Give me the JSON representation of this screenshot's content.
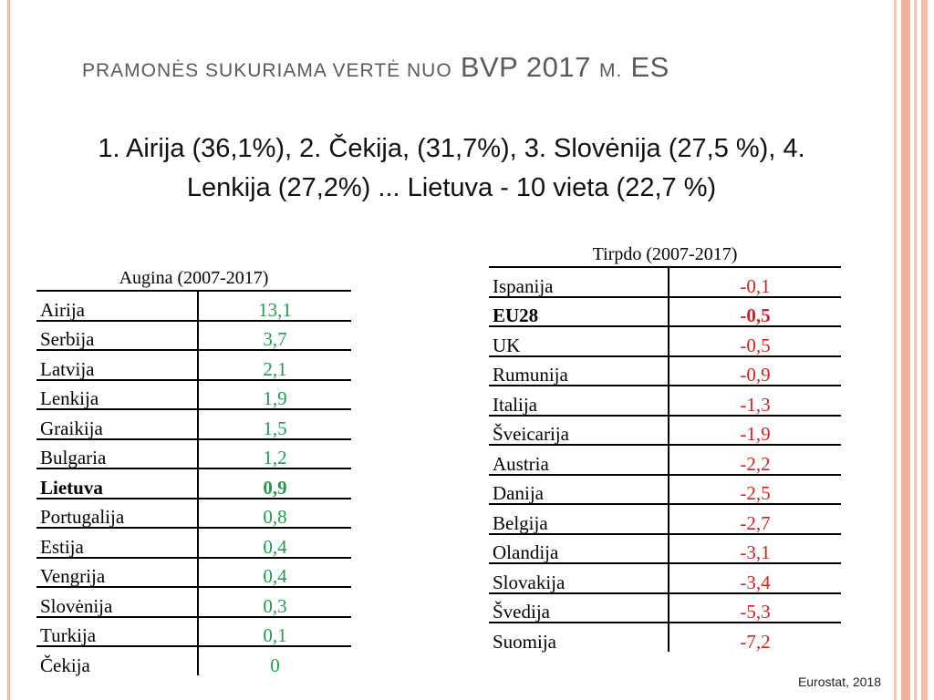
{
  "title": {
    "part1": "Pramonės sukuriama vertė nuo",
    "part2": "BVP 2017",
    "part3": "m.",
    "part4": "ES"
  },
  "subtitle": {
    "line1": "1. Airija (36,1%),  2. Čekija, (31,7%), 3. Slovėnija (27,5 %), 4.",
    "line2": "Lenkija (27,2%)  ... Lietuva - 10 vieta  (22,7 %)"
  },
  "grow_table": {
    "caption": "Augina (2007-2017)",
    "rows": [
      {
        "country": "Airija",
        "value": "13,1"
      },
      {
        "country": "Serbija",
        "value": "3,7"
      },
      {
        "country": "Latvija",
        "value": "2,1"
      },
      {
        "country": "Lenkija",
        "value": "1,9"
      },
      {
        "country": "Graikija",
        "value": "1,5"
      },
      {
        "country": "Bulgaria",
        "value": "1,2"
      },
      {
        "country": "Lietuva",
        "value": "0,9",
        "bold": true
      },
      {
        "country": "Portugalija",
        "value": "0,8"
      },
      {
        "country": "Estija",
        "value": "0,4"
      },
      {
        "country": "Vengrija",
        "value": "0,4"
      },
      {
        "country": "Slovėnija",
        "value": "0,3"
      },
      {
        "country": "Turkija",
        "value": "0,1"
      },
      {
        "country": "Čekija",
        "value": "0"
      }
    ]
  },
  "shrink_table": {
    "caption": "Tirpdo (2007-2017)",
    "rows": [
      {
        "country": "Ispanija",
        "value": "-0,1"
      },
      {
        "country": "EU28",
        "value": "-0,5",
        "bold": true
      },
      {
        "country": "UK",
        "value": "-0,5"
      },
      {
        "country": "Rumunija",
        "value": "-0,9"
      },
      {
        "country": "Italija",
        "value": "-1,3"
      },
      {
        "country": "Šveicarija",
        "value": "-1,9"
      },
      {
        "country": "Austria",
        "value": "-2,2"
      },
      {
        "country": "Danija",
        "value": "-2,5"
      },
      {
        "country": "Belgija",
        "value": "-2,7"
      },
      {
        "country": "Olandija",
        "value": "-3,1"
      },
      {
        "country": "Slovakija",
        "value": "-3,4"
      },
      {
        "country": "Švedija",
        "value": "-5,3"
      },
      {
        "country": "Suomija",
        "value": "-7,2"
      }
    ]
  },
  "source": "Eurostat, 2018",
  "colors": {
    "positive": "#1f9d4a",
    "negative": "#d6201e",
    "border": "#f2b8a8"
  }
}
